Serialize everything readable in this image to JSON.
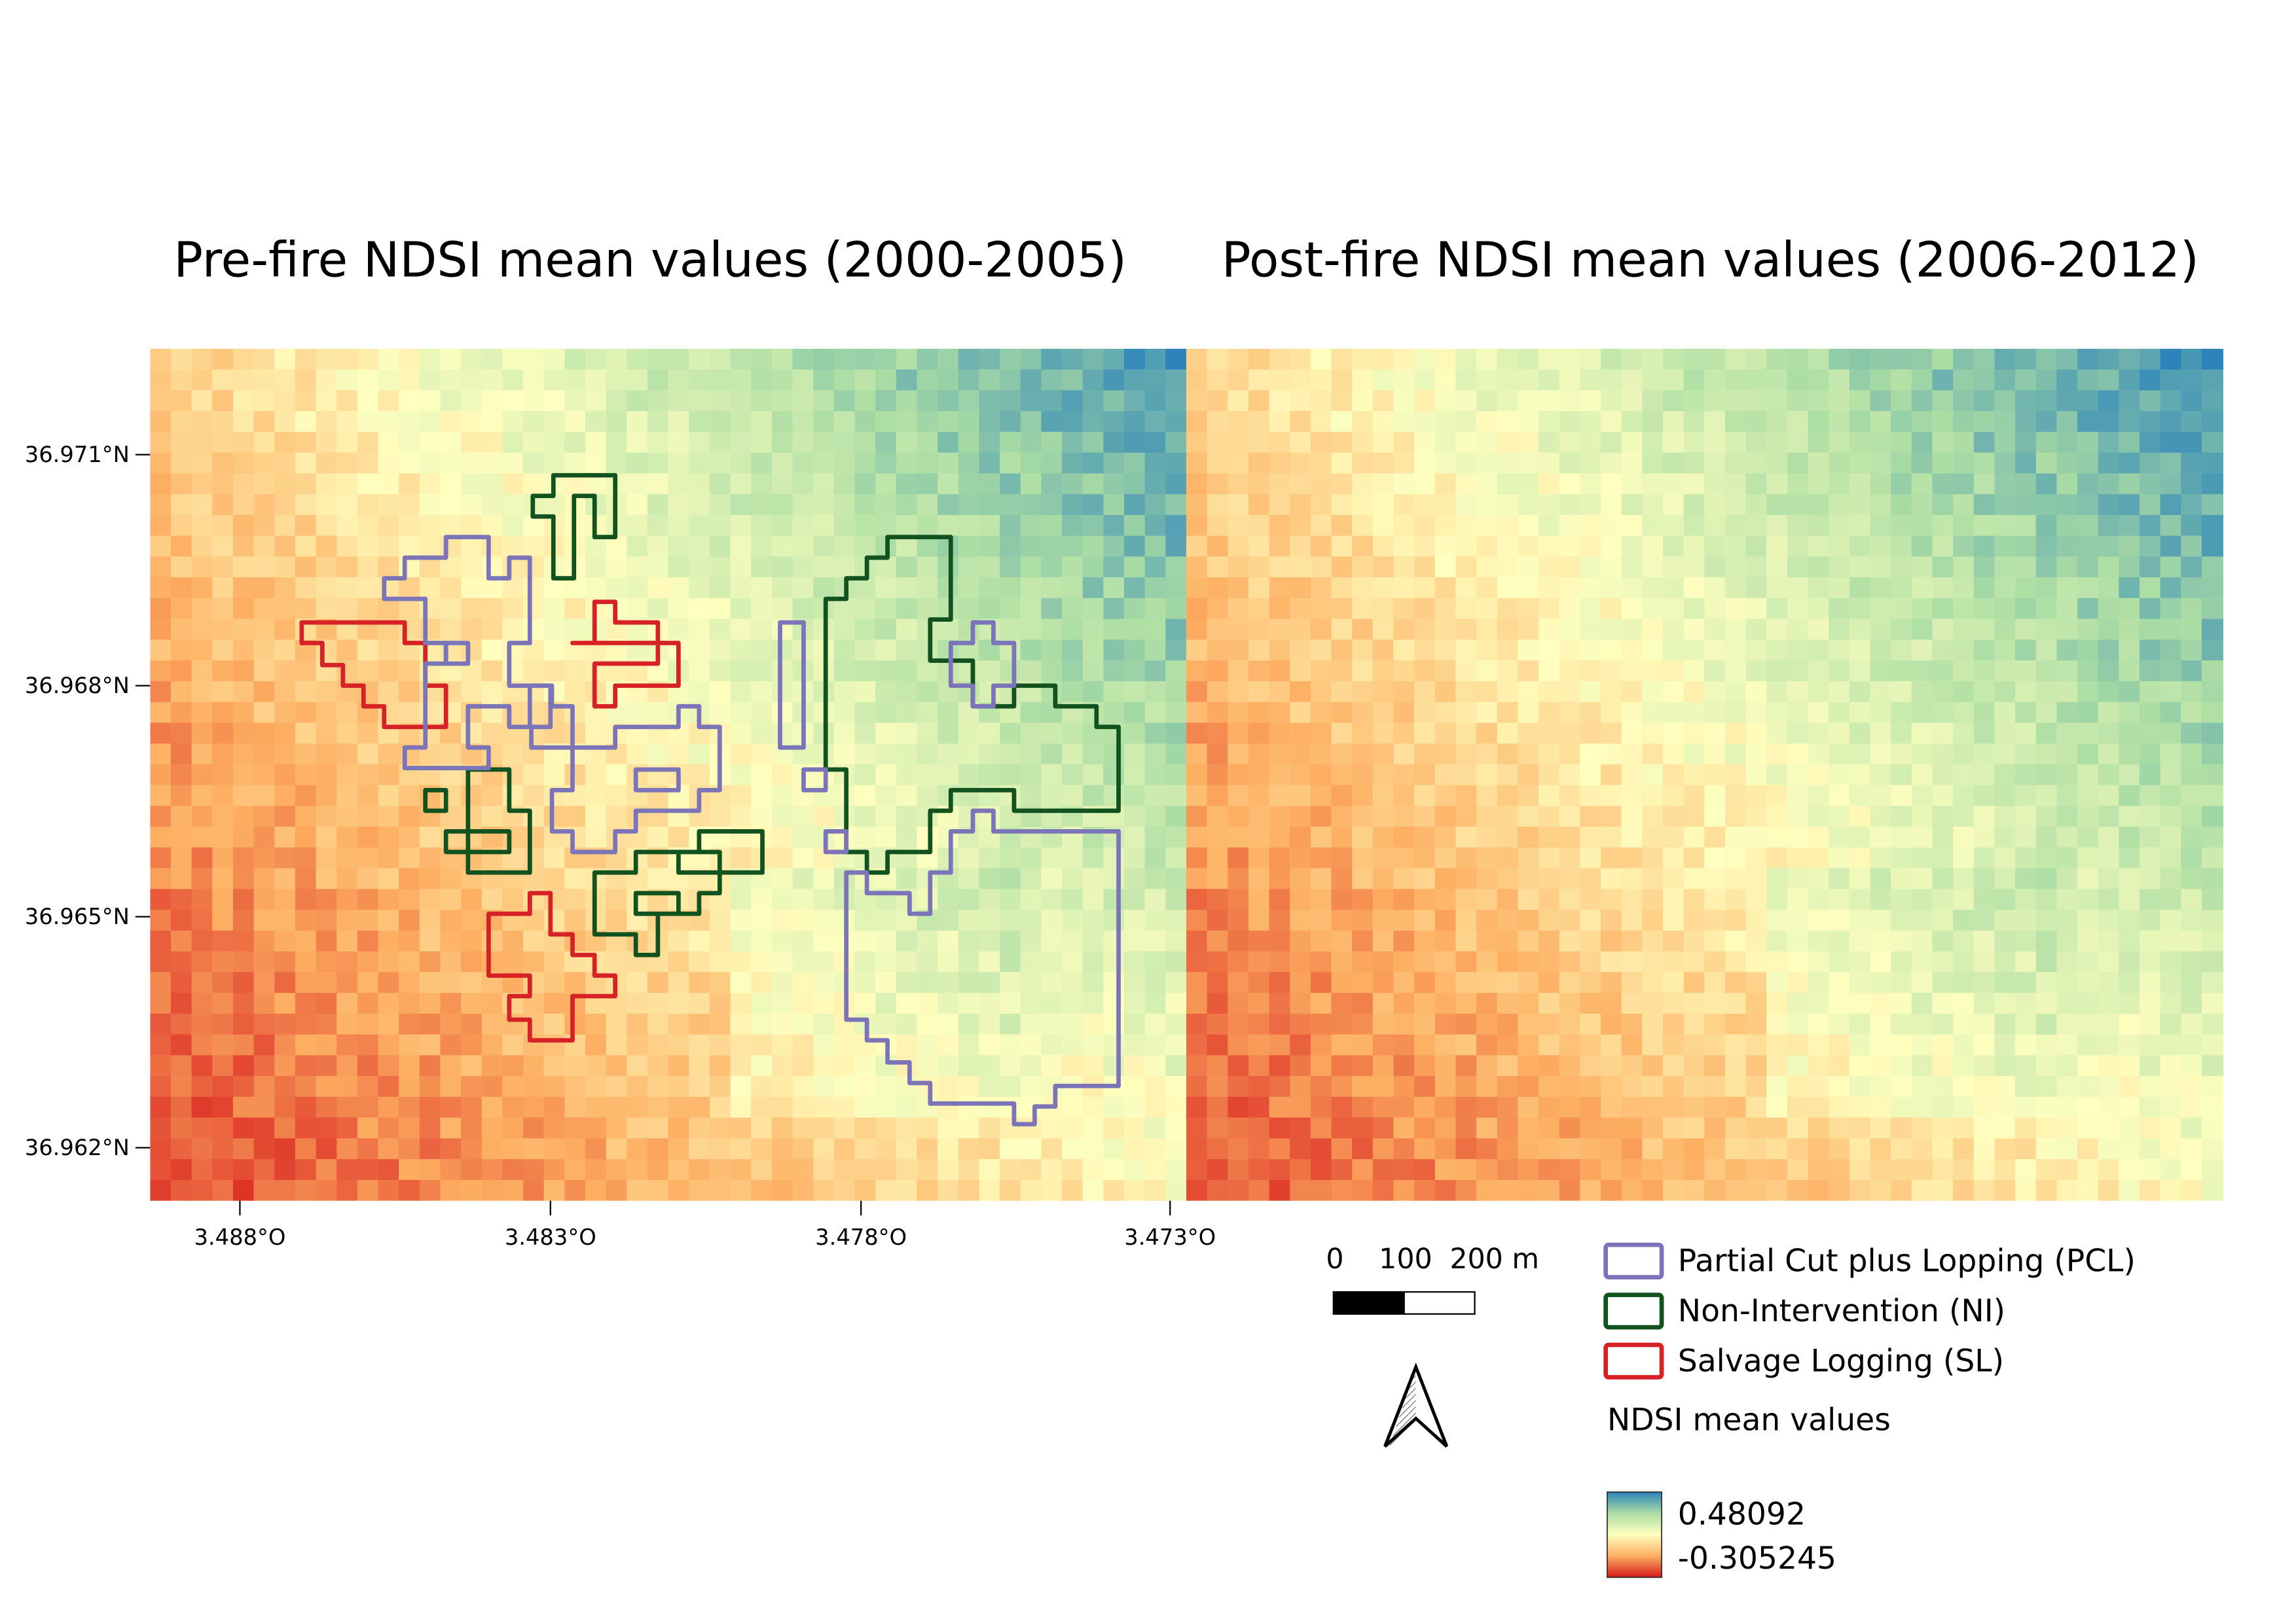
{
  "maps": [
    {
      "title": "Pre-fire NDSI mean values (2000-2005)",
      "period": "pre-fire"
    },
    {
      "title": "Post-fire NDSI mean values (2006-2012)",
      "period": "post-fire"
    }
  ],
  "axes": {
    "latitude_ticks": [
      "36.971°N",
      "36.968°N",
      "36.965°N",
      "36.962°N"
    ],
    "longitude_ticks": [
      "3.488°O",
      "3.483°O",
      "3.478°O",
      "3.473°O"
    ]
  },
  "scale_bar": {
    "labels": [
      "0",
      "100",
      "200 m"
    ]
  },
  "north_arrow": {
    "icon": "north-arrow-icon"
  },
  "legend": {
    "treatments": [
      {
        "label": "Partial Cut plus Lopping (PCL)",
        "color": "#7b74b8"
      },
      {
        "label": "Non-Intervention (NI)",
        "color": "#11521f"
      },
      {
        "label": "Salvage Logging (SL)",
        "color": "#d62227"
      }
    ],
    "ramp_title": "NDSI mean values",
    "ramp_max": "0.48092",
    "ramp_min": "-0.305245",
    "ramp_colors": [
      "#2b83ba",
      "#abdda4",
      "#ffffbf",
      "#fdae61",
      "#d7191c"
    ]
  }
}
